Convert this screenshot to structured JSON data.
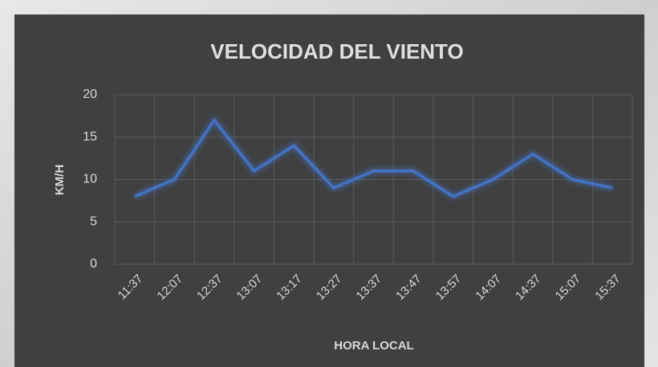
{
  "chart_data": {
    "type": "line",
    "title": "VELOCIDAD DEL VIENTO",
    "x_label": "HORA LOCAL",
    "y_label": "KM/H",
    "categories": [
      "11:37",
      "12:07",
      "12:37",
      "13:07",
      "13:17",
      "13:27",
      "13:37",
      "13:47",
      "13:57",
      "14:07",
      "14:37",
      "15:07",
      "15:37"
    ],
    "values": [
      8,
      10,
      17,
      11,
      14,
      9,
      11,
      11,
      8,
      10,
      13,
      10,
      9
    ],
    "color": "#4472c4",
    "ylim": [
      0,
      20
    ],
    "yticks": [
      0,
      5,
      10,
      15,
      20
    ],
    "grid": true
  }
}
